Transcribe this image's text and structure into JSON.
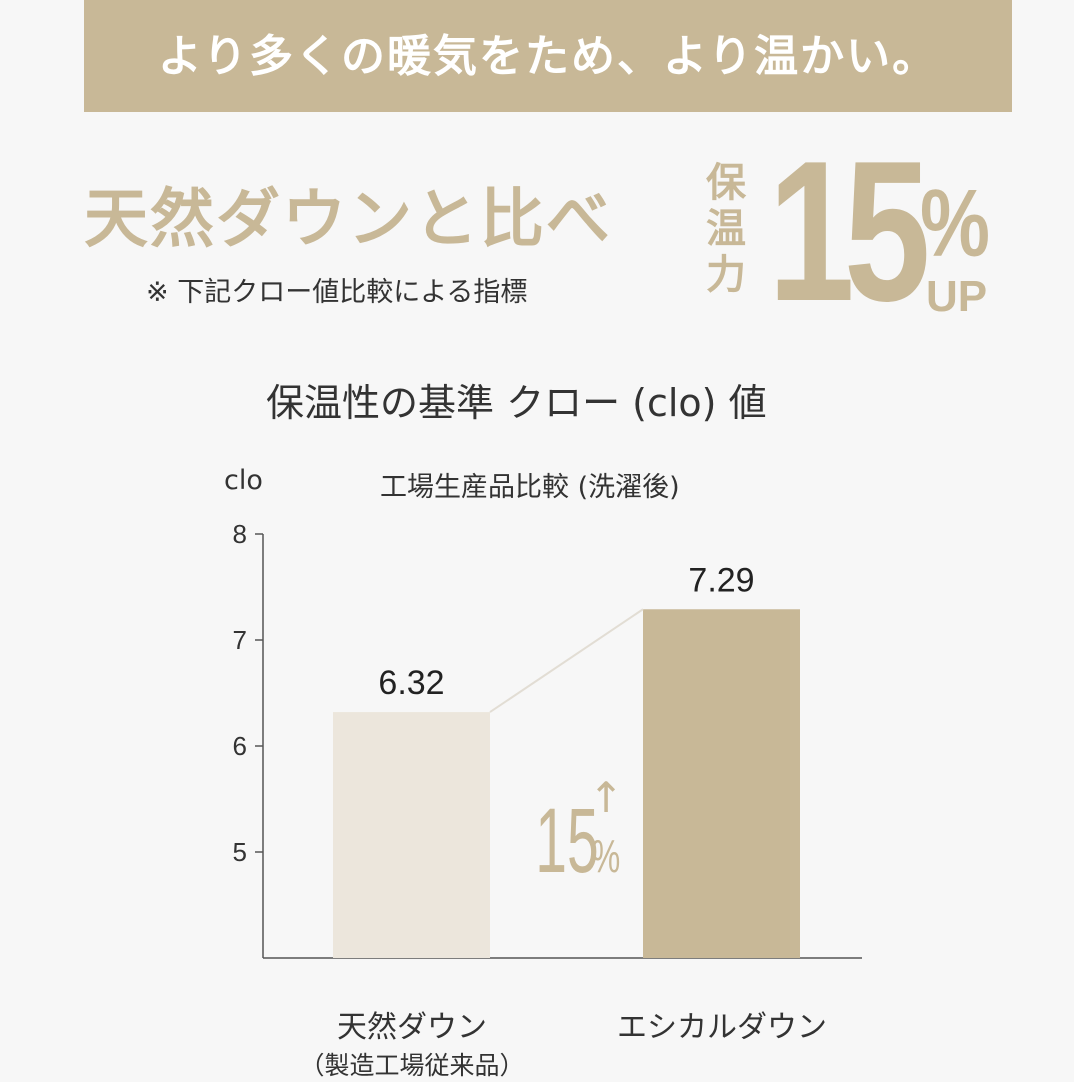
{
  "banner": {
    "text": "より多くの暖気をため、より温かい。"
  },
  "headline": {
    "compare_text": "天然ダウンと比べ",
    "note": "※ 下記クロー値比較による指標",
    "vertical_label_chars": [
      "保",
      "温",
      "力"
    ],
    "big_number": "15",
    "big_percent": "%",
    "big_up": "UP"
  },
  "colors": {
    "accent": "#c8b897",
    "bar_light": "#ece6dc",
    "bar_dark": "#c8b897",
    "background": "#f7f7f7",
    "text": "#333333"
  },
  "chart_data": {
    "type": "bar",
    "title": "保温性の基準 クロー (clo) 値",
    "subtitle": "工場生産品比較 (洗濯後)",
    "ylabel": "clo",
    "ylim": [
      4,
      8
    ],
    "yticks": [
      "5",
      "6",
      "7",
      "8"
    ],
    "categories": [
      "天然ダウン",
      "エシカルダウン"
    ],
    "category_notes": [
      "（製造工場従来品）",
      ""
    ],
    "values": [
      6.32,
      7.29
    ],
    "value_labels": [
      "6.32",
      "7.29"
    ],
    "annotation": {
      "number": "15",
      "percent": "%",
      "arrow": "↑"
    },
    "grid": false
  }
}
